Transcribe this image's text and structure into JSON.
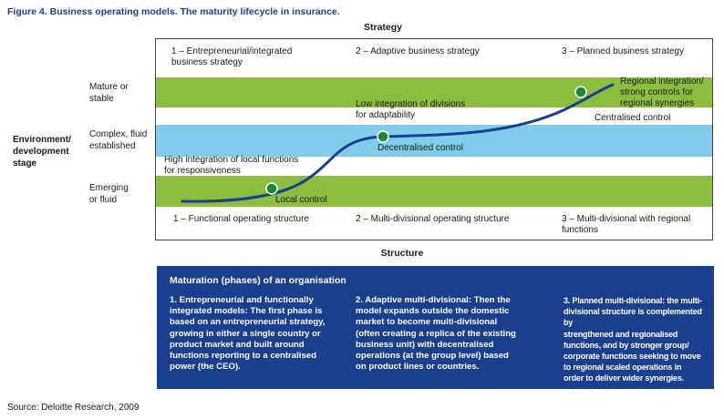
{
  "title": "Figure 4. Business operating models. The maturity lifecycle in insurance.",
  "strategy_header": "Strategy",
  "structure_header": "Structure",
  "y_axis": {
    "label_line1": "Environment/",
    "label_line2": "development",
    "label_line3": "stage",
    "levels": [
      {
        "line1": "Mature or",
        "line2": "stable"
      },
      {
        "line1": "Complex, fluid",
        "line2": "established"
      },
      {
        "line1": "Emerging",
        "line2": "or fluid"
      }
    ]
  },
  "strategies": [
    {
      "line1": "1 – Entrepreneurial/integrated",
      "line2": "business strategy"
    },
    {
      "line1": "2 – Adaptive business strategy",
      "line2": ""
    },
    {
      "line1": "3 – Planned business strategy",
      "line2": ""
    }
  ],
  "structures": [
    {
      "line1": "1 – Functional operating structure",
      "line2": ""
    },
    {
      "line1": "2 – Multi-divisional operating structure",
      "line2": ""
    },
    {
      "line1": "3 – Multi-divisional with regional",
      "line2": "functions"
    }
  ],
  "annotations": {
    "local_control": "Local control",
    "decentralised_control": "Decentralised control",
    "centralised_control": "Centralised control",
    "high_integration_line1": "High integration of local functions",
    "high_integration_line2": "for responsiveness",
    "low_integration_line1": "Low integration of divisions",
    "low_integration_line2": "for adaptability",
    "regional_line1": "Regional integration/",
    "regional_line2": "strong controls for",
    "regional_line3": "regional synergies"
  },
  "colors": {
    "green_band": "#8cbd3f",
    "blue_band": "#7fcdea",
    "curve": "#1b3f8f",
    "dot": "#1a8a3a",
    "panel": "#1b3f8f"
  },
  "panel": {
    "title": "Maturation (phases) of an organisation",
    "columns": [
      {
        "lines": [
          "1. Entrepreneurial and functionally",
          "integrated models: The first phase is",
          "based on an entrepreneurial strategy,",
          "growing in either a single country or",
          "product market and built around",
          "functions reporting to a centralised",
          "power (the CEO)."
        ]
      },
      {
        "lines": [
          "2. Adaptive multi-divisional: Then the",
          "model expands outside the domestic",
          "market to become multi-divisional",
          "(often creating a replica of the existing",
          "business unit) with decentralised",
          "operations (at the group level) based",
          "on product lines or countries."
        ]
      },
      {
        "lines": [
          "3. Planned multi-divisional: the multi-",
          "divisional structure is complemented by",
          "strengthened and regionalised",
          "functions, and by stronger group/",
          "corporate functions seeking to move",
          "to regional scaled operations in",
          "order to deliver wider synergies."
        ]
      }
    ]
  },
  "source": "Source: Deloitte Research, 2009"
}
